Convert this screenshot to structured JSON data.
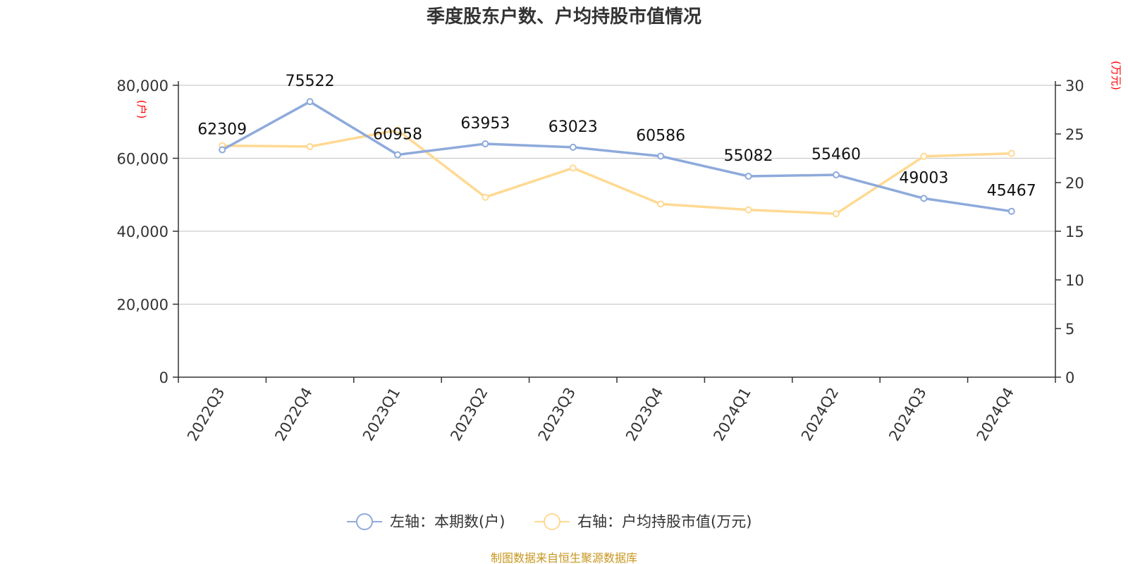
{
  "chart_data": {
    "type": "line",
    "title": "季度股东户数、户均持股市值情况",
    "categories": [
      "2022Q3",
      "2022Q4",
      "2023Q1",
      "2023Q2",
      "2023Q3",
      "2023Q4",
      "2024Q1",
      "2024Q2",
      "2024Q3",
      "2024Q4"
    ],
    "left_axis": {
      "unit": "(户)",
      "range": [
        0,
        80000
      ],
      "ticks": [
        0,
        20000,
        40000,
        60000,
        80000
      ],
      "tick_labels": [
        "0",
        "20,000",
        "40,000",
        "60,000",
        "80,000"
      ]
    },
    "right_axis": {
      "unit": "(万元)",
      "range": [
        0,
        30
      ],
      "ticks": [
        0,
        5,
        10,
        15,
        20,
        25,
        30
      ],
      "tick_labels": [
        "0",
        "5",
        "10",
        "15",
        "20",
        "25",
        "30"
      ]
    },
    "grid": true,
    "legend_position": "bottom",
    "series": [
      {
        "name": "左轴：本期数(户)",
        "axis": "left",
        "color": "#8eaadb",
        "values": [
          62309,
          75522,
          60958,
          63953,
          63023,
          60586,
          55082,
          55460,
          49003,
          45467
        ],
        "data_labels": [
          "62309",
          "75522",
          "60958",
          "63953",
          "63023",
          "60586",
          "55082",
          "55460",
          "49003",
          "45467"
        ]
      },
      {
        "name": "右轴：户均持股市值(万元)",
        "axis": "right",
        "color": "#ffd993",
        "values": [
          23.8,
          23.7,
          25.4,
          18.5,
          21.5,
          17.8,
          17.2,
          16.8,
          22.7,
          23.0
        ]
      }
    ],
    "source": "制图数据来自恒生聚源数据库"
  }
}
